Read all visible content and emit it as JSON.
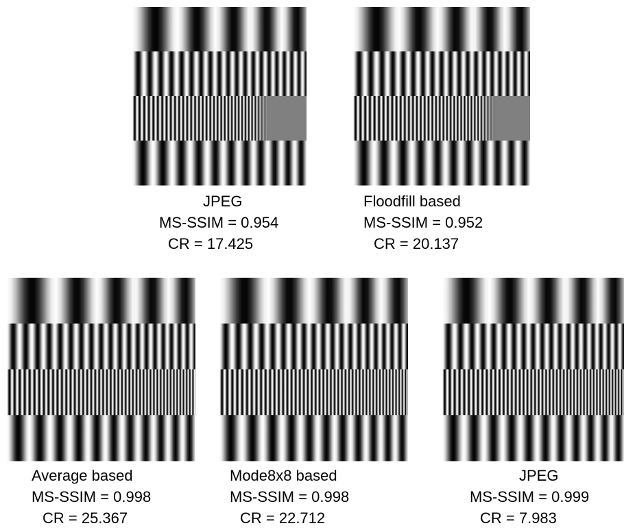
{
  "panels": [
    {
      "method": "JPEG",
      "ms_ssim": "MS-SSIM = 0.954",
      "cr": "CR = 17.425"
    },
    {
      "method": "Floodfill based",
      "ms_ssim": "MS-SSIM = 0.952",
      "cr": "CR = 20.137"
    },
    {
      "method": "Average based",
      "ms_ssim": "MS-SSIM = 0.998",
      "cr": "CR = 25.367"
    },
    {
      "method": "Mode8x8 based",
      "ms_ssim": "MS-SSIM = 0.998",
      "cr": "CR = 22.712"
    },
    {
      "method": "JPEG",
      "ms_ssim": "MS-SSIM = 0.999",
      "cr": "CR = 7.983"
    }
  ]
}
